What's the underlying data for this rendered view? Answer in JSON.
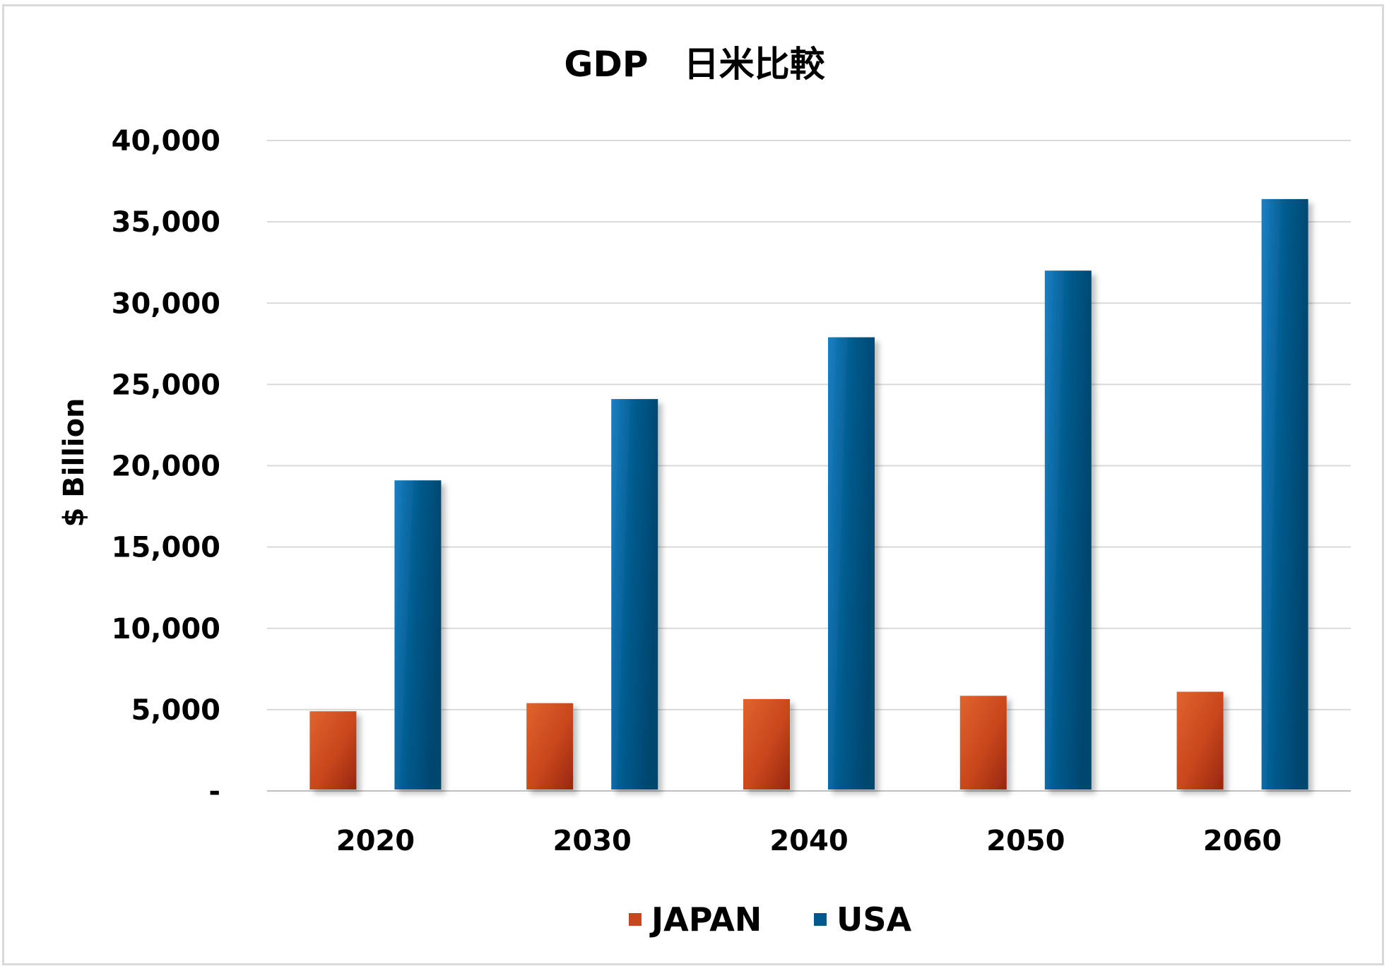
{
  "chart_data": {
    "type": "bar",
    "title": "GDP　日米比較",
    "ylabel": "$ Billion",
    "xlabel": "",
    "categories": [
      "2020",
      "2030",
      "2040",
      "2050",
      "2060"
    ],
    "series": [
      {
        "name": "JAPAN",
        "values": [
          4900,
          5400,
          5650,
          5850,
          6100
        ],
        "color": "#c8461c"
      },
      {
        "name": "USA",
        "values": [
          19100,
          24100,
          27900,
          32000,
          36400
        ],
        "color": "#005a8c"
      }
    ],
    "ylim": [
      0,
      40000
    ],
    "yticks": [
      0,
      5000,
      10000,
      15000,
      20000,
      25000,
      30000,
      35000,
      40000
    ],
    "ytick_labels": [
      "-",
      "5,000",
      "10,000",
      "15,000",
      "20,000",
      "25,000",
      "30,000",
      "35,000",
      "40,000"
    ],
    "grid": true,
    "legend": "bottom"
  }
}
